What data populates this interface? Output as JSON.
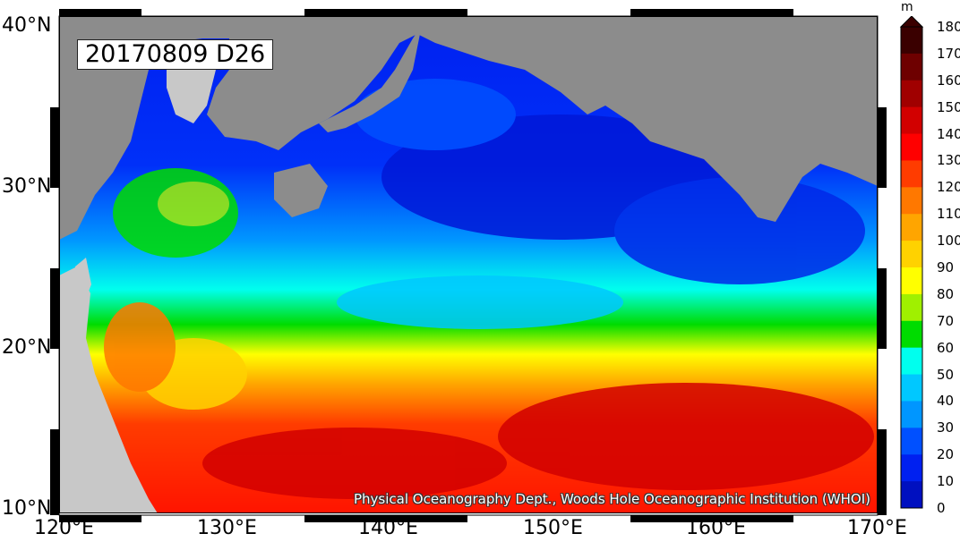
{
  "map": {
    "title": "20170809 D26",
    "credit": "Physical Oceanography Dept., Woods Hole Oceanographic Institution (WHOI)",
    "lat_labels": [
      "40°N",
      "30°N",
      "20°N",
      "10°N"
    ],
    "lon_labels": [
      "120°E",
      "130°E",
      "140°E",
      "150°E",
      "160°E",
      "170°E"
    ],
    "colors": {
      "land_dark": "#8c8c8c",
      "land_light": "#c8c8c8"
    }
  },
  "colorbar": {
    "unit": "m",
    "ticks": [
      "180",
      "170",
      "160",
      "150",
      "140",
      "130",
      "120",
      "110",
      "100",
      "90",
      "80",
      "70",
      "60",
      "50",
      "40",
      "30",
      "20",
      "10",
      "0"
    ],
    "colors": [
      "#3a0000",
      "#6e0000",
      "#a00000",
      "#d20000",
      "#ff0000",
      "#ff3c00",
      "#ff7800",
      "#ffa500",
      "#ffd200",
      "#ffff00",
      "#a0f000",
      "#00dc00",
      "#00ffee",
      "#00c8ff",
      "#0096ff",
      "#0050ff",
      "#0020f0",
      "#0010c0",
      "#00008c"
    ]
  }
}
